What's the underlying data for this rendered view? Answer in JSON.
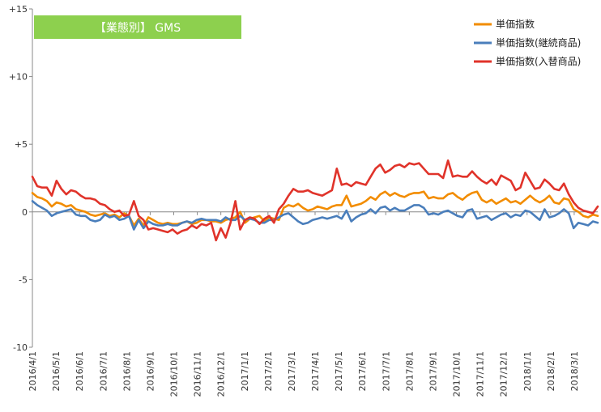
{
  "chart_data": {
    "type": "line",
    "title": "【業態別】 GMS",
    "xlabel": "",
    "ylabel": "",
    "ylim": [
      -10,
      15
    ],
    "y_ticks": [
      15,
      10,
      5,
      0,
      -5,
      -10
    ],
    "y_tick_labels": [
      "+15",
      "+10",
      "+5",
      "0",
      "-5",
      "-10"
    ],
    "x_tick_labels": [
      "2016/4/1",
      "2016/5/1",
      "2016/6/1",
      "2016/7/1",
      "2016/8/1",
      "2016/9/1",
      "2016/10/1",
      "2016/11/1",
      "2016/12/1",
      "2017/1/1",
      "2017/2/1",
      "2017/3/1",
      "2017/4/1",
      "2017/5/1",
      "2017/6/1",
      "2017/7/1",
      "2017/8/1",
      "2017/9/1",
      "2017/10/1",
      "2017/11/1",
      "2017/12/1",
      "2018/1/1",
      "2018/2/1",
      "2018/3/1"
    ],
    "grid": "horizontal-zero-line",
    "legend_position": "top-right",
    "series": [
      {
        "name": "単価指数",
        "color": "#F28C00",
        "values": [
          1.4,
          1.1,
          1.0,
          0.8,
          0.4,
          0.7,
          0.6,
          0.4,
          0.5,
          0.2,
          0.1,
          0.0,
          -0.2,
          -0.3,
          -0.2,
          -0.1,
          -0.3,
          -0.2,
          -0.4,
          -0.1,
          -0.3,
          -1.0,
          -0.5,
          -1.0,
          -0.4,
          -0.6,
          -0.8,
          -0.9,
          -0.8,
          -0.9,
          -0.9,
          -0.8,
          -0.7,
          -0.9,
          -0.8,
          -0.6,
          -0.6,
          -0.7,
          -0.7,
          -0.8,
          -0.6,
          -0.5,
          -0.4,
          0.0,
          -0.8,
          -0.5,
          -0.4,
          -0.3,
          -0.7,
          -0.4,
          -0.5,
          -0.6,
          0.3,
          0.5,
          0.4,
          0.6,
          0.3,
          0.1,
          0.2,
          0.4,
          0.3,
          0.2,
          0.4,
          0.5,
          0.5,
          1.2,
          0.4,
          0.5,
          0.6,
          0.8,
          1.1,
          0.9,
          1.3,
          1.5,
          1.2,
          1.4,
          1.2,
          1.1,
          1.3,
          1.4,
          1.4,
          1.5,
          1.0,
          1.1,
          1.0,
          1.0,
          1.3,
          1.4,
          1.1,
          0.9,
          1.2,
          1.4,
          1.5,
          0.9,
          0.7,
          0.9,
          0.6,
          0.8,
          1.0,
          0.7,
          0.8,
          0.6,
          0.9,
          1.2,
          0.9,
          0.7,
          0.9,
          1.2,
          0.7,
          0.6,
          1.0,
          0.9,
          0.2,
          0.0,
          -0.3,
          -0.4,
          -0.2,
          -0.3
        ]
      },
      {
        "name": "単価指数(継続商品)",
        "color": "#4A7EBB",
        "values": [
          0.8,
          0.5,
          0.3,
          0.1,
          -0.3,
          -0.1,
          0.0,
          0.1,
          0.2,
          -0.2,
          -0.3,
          -0.3,
          -0.6,
          -0.7,
          -0.6,
          -0.2,
          -0.4,
          -0.3,
          -0.6,
          -0.5,
          -0.3,
          -1.3,
          -0.6,
          -1.2,
          -0.7,
          -0.9,
          -1.0,
          -1.0,
          -0.9,
          -1.0,
          -1.0,
          -0.8,
          -0.7,
          -0.8,
          -0.6,
          -0.5,
          -0.6,
          -0.6,
          -0.6,
          -0.7,
          -0.4,
          -0.6,
          -0.6,
          -0.3,
          -0.6,
          -0.5,
          -0.6,
          -0.8,
          -0.8,
          -0.6,
          -0.6,
          -0.4,
          -0.2,
          -0.1,
          -0.4,
          -0.7,
          -0.9,
          -0.8,
          -0.6,
          -0.5,
          -0.4,
          -0.5,
          -0.4,
          -0.3,
          -0.5,
          0.1,
          -0.7,
          -0.4,
          -0.2,
          -0.1,
          0.2,
          -0.1,
          0.3,
          0.4,
          0.1,
          0.3,
          0.1,
          0.1,
          0.3,
          0.5,
          0.5,
          0.3,
          -0.2,
          -0.1,
          -0.2,
          0.0,
          0.1,
          -0.1,
          -0.3,
          -0.4,
          0.1,
          0.2,
          -0.5,
          -0.4,
          -0.3,
          -0.6,
          -0.4,
          -0.2,
          -0.1,
          -0.4,
          -0.2,
          -0.3,
          0.1,
          0.0,
          -0.3,
          -0.6,
          0.2,
          -0.4,
          -0.3,
          -0.1,
          0.2,
          -0.1,
          -1.2,
          -0.8,
          -0.9,
          -1.0,
          -0.7,
          -0.8
        ]
      },
      {
        "name": "単価指数(入替商品)",
        "color": "#E0332A",
        "values": [
          2.6,
          1.9,
          1.8,
          1.8,
          1.2,
          2.3,
          1.7,
          1.3,
          1.6,
          1.5,
          1.2,
          1.0,
          1.0,
          0.9,
          0.6,
          0.5,
          0.2,
          0.0,
          0.1,
          -0.3,
          -0.2,
          0.8,
          -0.3,
          -0.6,
          -1.3,
          -1.2,
          -1.3,
          -1.4,
          -1.5,
          -1.3,
          -1.6,
          -1.4,
          -1.3,
          -1.0,
          -1.2,
          -0.9,
          -1.0,
          -0.8,
          -2.1,
          -1.2,
          -1.9,
          -0.8,
          0.8,
          -1.3,
          -0.6,
          -0.4,
          -0.5,
          -0.9,
          -0.5,
          -0.3,
          -0.8,
          0.2,
          0.6,
          1.2,
          1.7,
          1.5,
          1.5,
          1.6,
          1.4,
          1.3,
          1.2,
          1.4,
          1.6,
          3.2,
          2.0,
          2.1,
          1.9,
          2.2,
          2.1,
          2.0,
          2.6,
          3.2,
          3.5,
          2.9,
          3.1,
          3.4,
          3.5,
          3.3,
          3.6,
          3.5,
          3.6,
          3.2,
          2.8,
          2.8,
          2.8,
          2.5,
          3.8,
          2.6,
          2.7,
          2.6,
          2.6,
          3.0,
          2.6,
          2.3,
          2.1,
          2.4,
          2.0,
          2.7,
          2.5,
          2.3,
          1.6,
          1.8,
          2.9,
          2.3,
          1.7,
          1.8,
          2.4,
          2.1,
          1.7,
          1.6,
          2.1,
          1.3,
          0.7,
          0.3,
          0.1,
          0.0,
          -0.1,
          0.4
        ]
      }
    ]
  }
}
